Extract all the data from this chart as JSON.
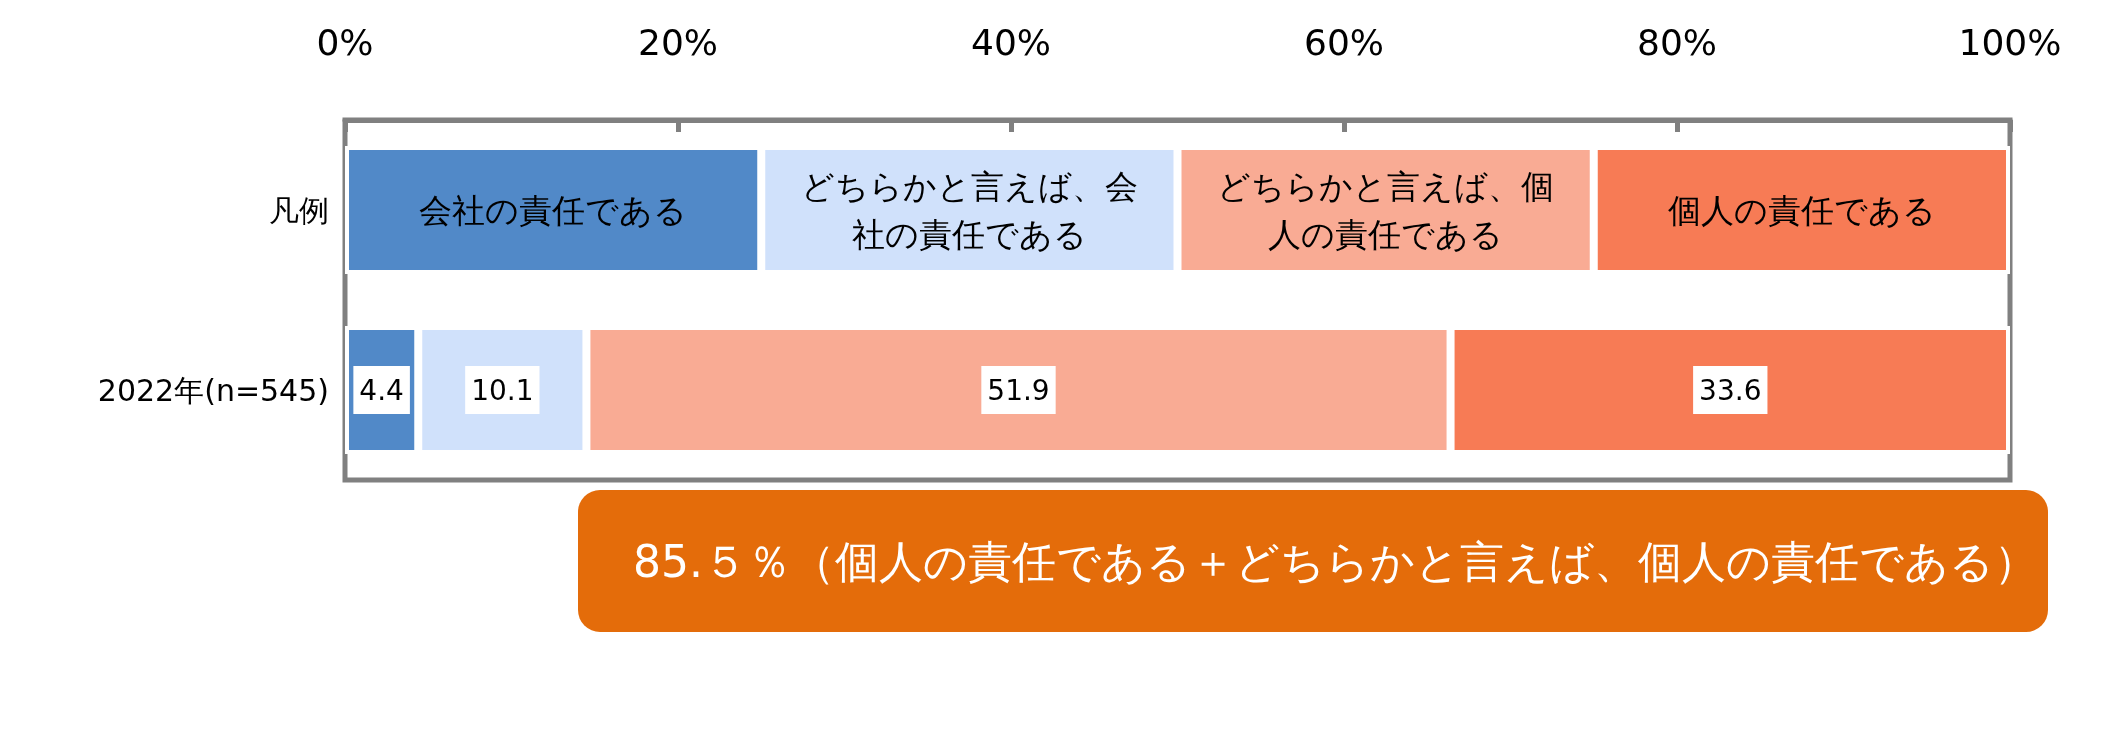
{
  "chart_data": {
    "type": "bar",
    "orientation": "horizontal",
    "stacked": true,
    "categories": [
      "凡例",
      "2022年(n=545)"
    ],
    "series": [
      {
        "name": "会社の責任である",
        "color": "#5189c8",
        "values": [
          25,
          4.4
        ],
        "value_labels": [
          null,
          "4.4"
        ]
      },
      {
        "name": "どちらかと言えば、会社の責任である",
        "color": "#d0e1fb",
        "values": [
          25,
          10.1
        ],
        "value_labels": [
          null,
          "10.1"
        ]
      },
      {
        "name": "どちらかと言えば、個人の責任である",
        "color": "#f9ab94",
        "values": [
          25,
          51.9
        ],
        "value_labels": [
          null,
          "51.9"
        ]
      },
      {
        "name": "個人の責任である",
        "color": "#f77b55",
        "values": [
          25,
          33.6
        ],
        "value_labels": [
          null,
          "33.6"
        ]
      }
    ],
    "xlim": [
      0,
      100
    ],
    "xticks": [
      {
        "value": 0,
        "label": "0%"
      },
      {
        "value": 20,
        "label": "20%"
      },
      {
        "value": 40,
        "label": "40%"
      },
      {
        "value": 60,
        "label": "60%"
      },
      {
        "value": 80,
        "label": "80%"
      },
      {
        "value": 100,
        "label": "100%"
      }
    ],
    "grid": false,
    "annotations": [
      "85.５％（個人の責任である＋どちらかと言えば、個人の責任である）"
    ]
  }
}
